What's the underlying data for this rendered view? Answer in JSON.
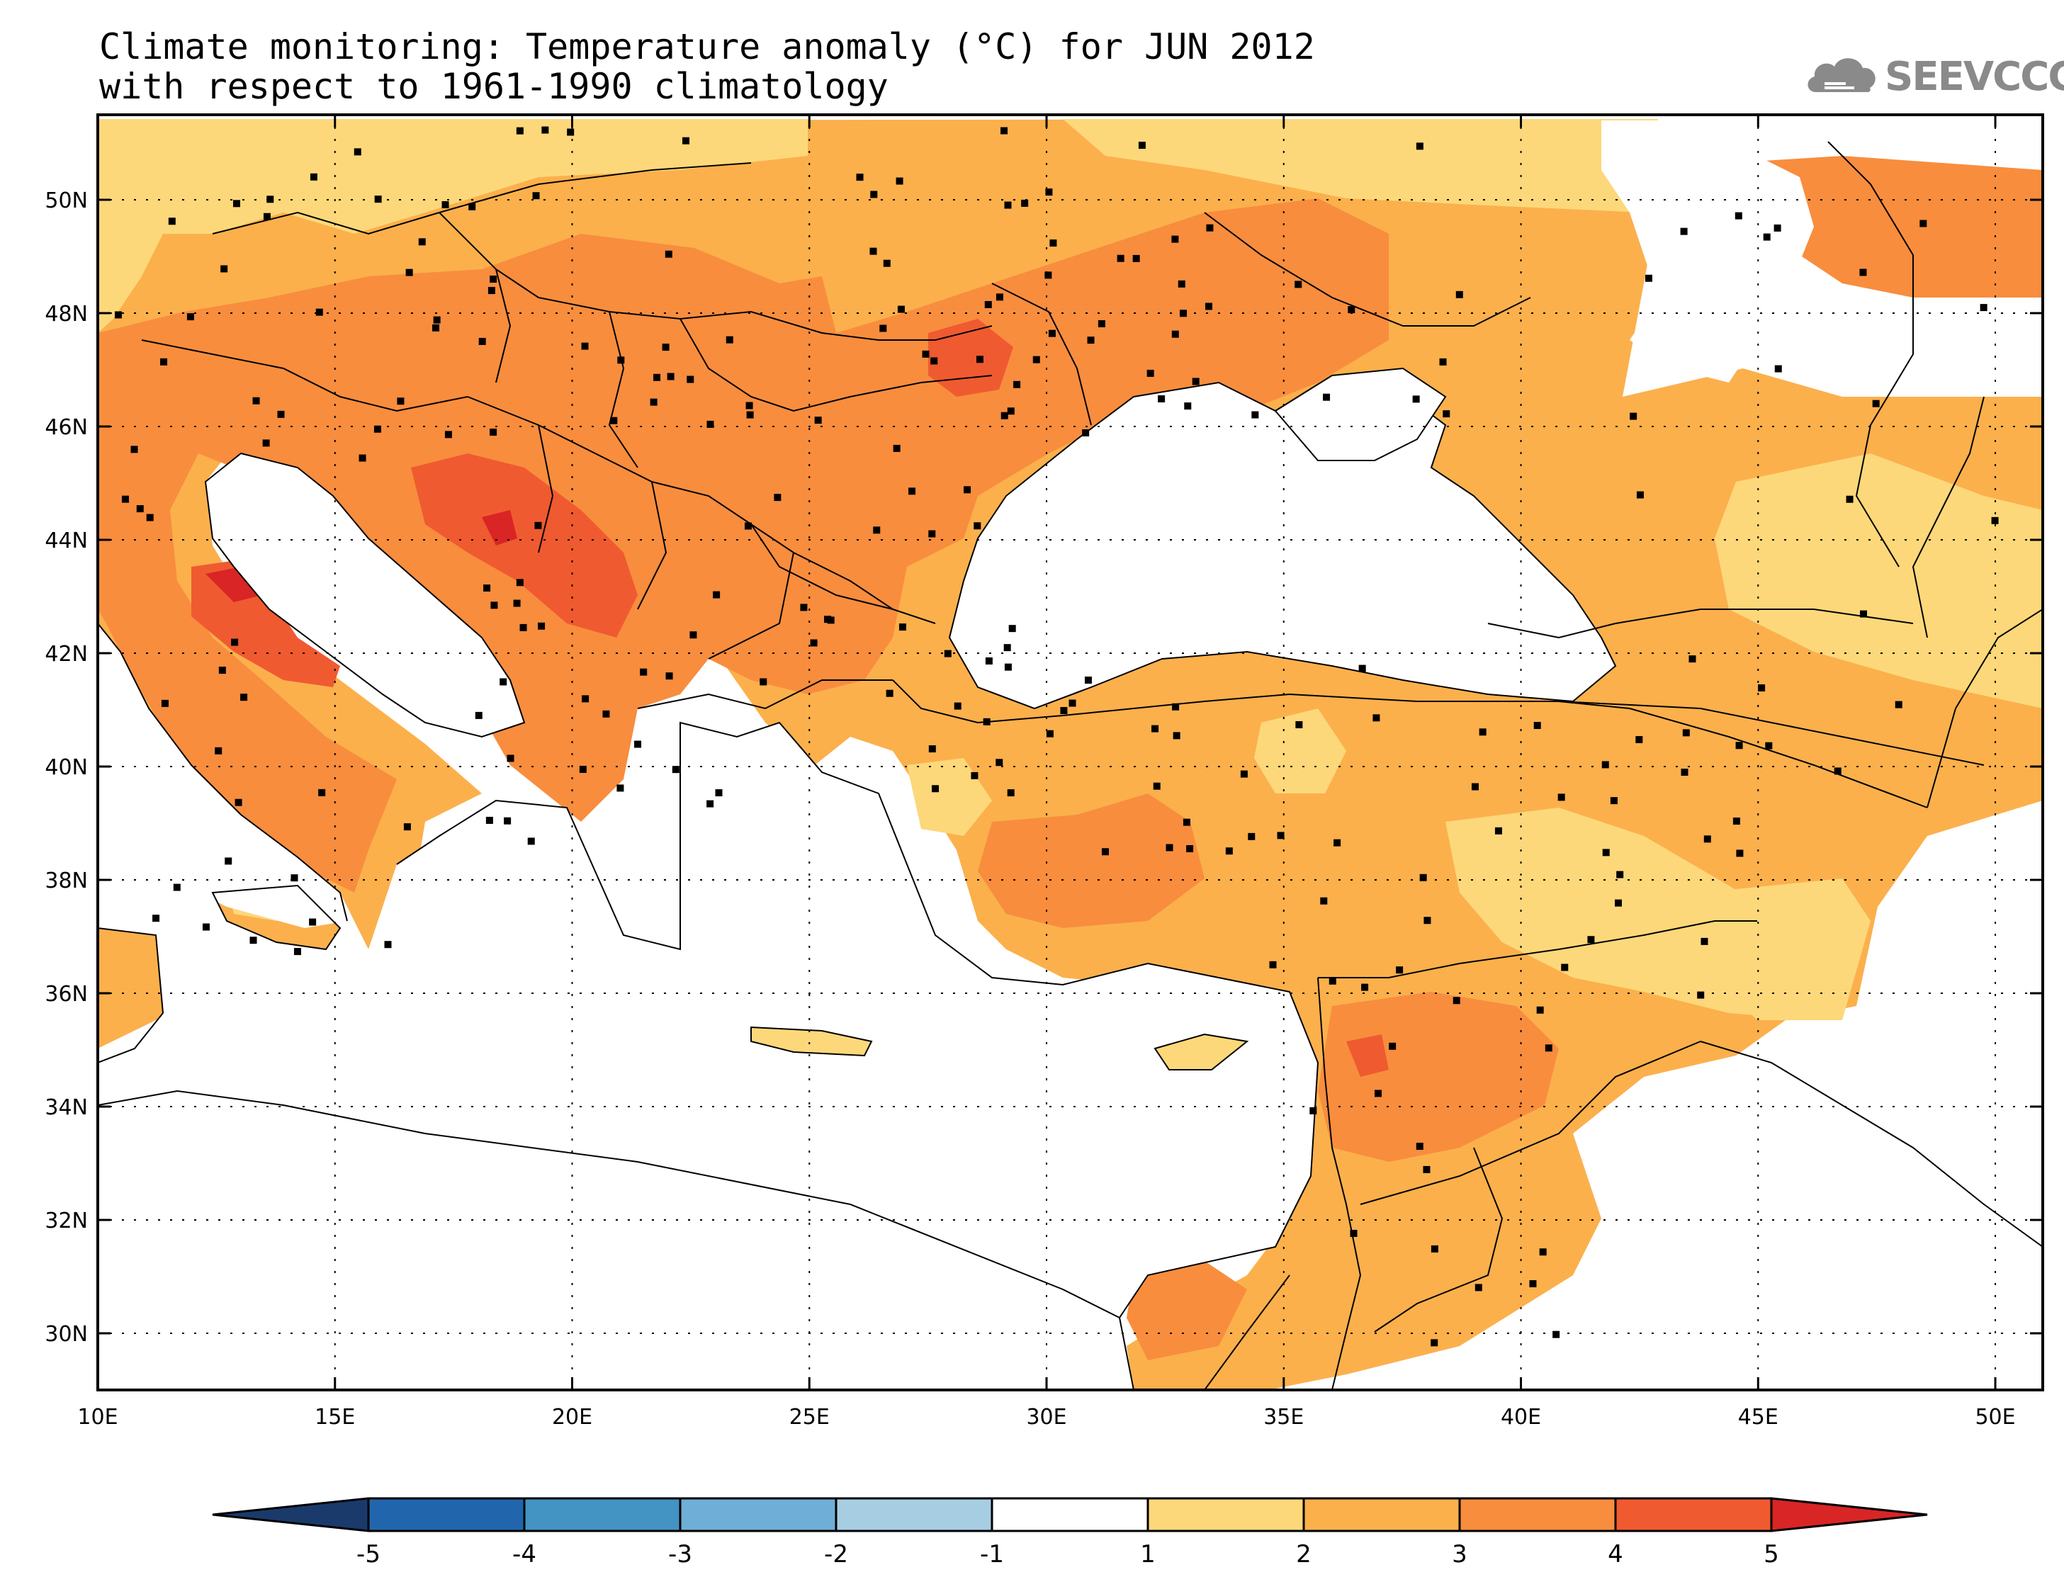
{
  "title_line1": "Climate monitoring: Temperature anomaly (°C) for JUN 2012",
  "title_line2": "with respect to 1961-1990 climatology",
  "logo": {
    "text": "SEEVCCC",
    "icon": "cloud-icon",
    "color": "#8a8a8a"
  },
  "map": {
    "lon_range": [
      10,
      51
    ],
    "lat_range": [
      29,
      51.5
    ],
    "lon_ticks": [
      {
        "value": 10,
        "label": "10E"
      },
      {
        "value": 15,
        "label": "15E"
      },
      {
        "value": 20,
        "label": "20E"
      },
      {
        "value": 25,
        "label": "25E"
      },
      {
        "value": 30,
        "label": "30E"
      },
      {
        "value": 35,
        "label": "35E"
      },
      {
        "value": 40,
        "label": "40E"
      },
      {
        "value": 45,
        "label": "45E"
      },
      {
        "value": 50,
        "label": "50E"
      }
    ],
    "lat_ticks": [
      {
        "value": 30,
        "label": "30N"
      },
      {
        "value": 32,
        "label": "32N"
      },
      {
        "value": 34,
        "label": "34N"
      },
      {
        "value": 36,
        "label": "36N"
      },
      {
        "value": 38,
        "label": "38N"
      },
      {
        "value": 40,
        "label": "40N"
      },
      {
        "value": 42,
        "label": "42N"
      },
      {
        "value": 44,
        "label": "44N"
      },
      {
        "value": 46,
        "label": "46N"
      },
      {
        "value": 48,
        "label": "48N"
      },
      {
        "value": 50,
        "label": "50N"
      }
    ],
    "grid": "dotted",
    "region_colors": {
      "1-2": "#fdd87a",
      "2-3": "#fbb04c",
      "3-4": "#f88d3e",
      "4-5": "#f05a30",
      "gt5": "#d92525"
    }
  },
  "colorbar": {
    "labels": [
      "-5",
      "-4",
      "-3",
      "-2",
      "-1",
      "1",
      "2",
      "3",
      "4",
      "5"
    ],
    "colors": [
      "#1a3a6b",
      "#2166ac",
      "#4393c3",
      "#6faed6",
      "#a6cde2",
      "#ffffff",
      "#fdd87a",
      "#fbb04c",
      "#f88d3e",
      "#f05a30",
      "#d92525"
    ]
  }
}
